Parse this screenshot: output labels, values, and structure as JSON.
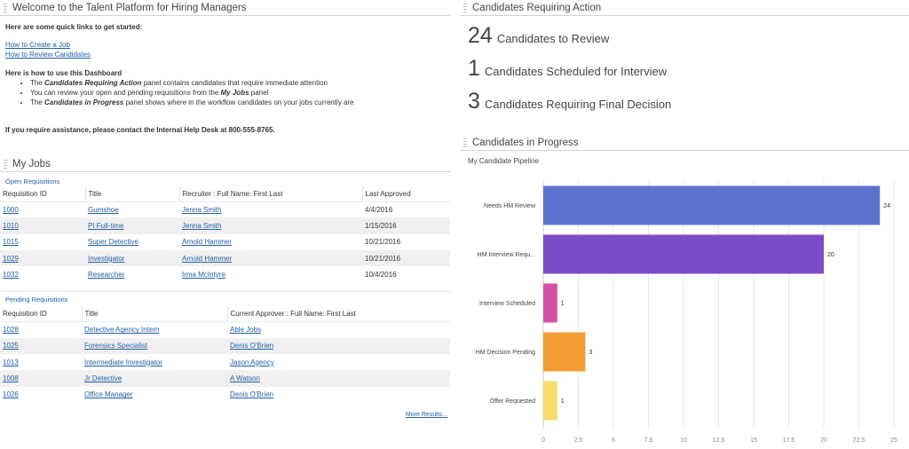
{
  "welcome": {
    "title": "Welcome to the Talent Platform for Hiring Managers",
    "intro": "Here are some quick links to get started:",
    "links": [
      "How to Create a Job",
      "How to Review Candidates"
    ],
    "howto_title": "Here is how to use this Dashboard",
    "bullets": [
      {
        "pre": "The ",
        "em": "Candidates Requiring Action",
        "post": " panel contains candidates that require immediate attention"
      },
      {
        "pre": "You can review your open and pending requisitions from the ",
        "em": "My Jobs",
        "post": " panel"
      },
      {
        "pre": "The ",
        "em": "Candidates in Progress",
        "post": " panel shows where in the workflow candidates on your jobs currently are"
      }
    ],
    "assistance": "If you require assistance, please contact the Internal Help Desk at 800-555-8765."
  },
  "myjobs": {
    "title": "My Jobs",
    "open": {
      "title": "Open Requisitions",
      "headers": [
        "Requisition ID",
        "Title",
        "Recruiter : Full Name: First Last",
        "Last Approved"
      ],
      "rows": [
        [
          "1000",
          "Gumshoe",
          "Jenna Smith",
          "4/4/2016"
        ],
        [
          "1010",
          "PI Full-time",
          "Jenna Smith",
          "1/15/2016"
        ],
        [
          "1015",
          "Super Detective",
          "Arnold Hammer",
          "10/21/2016"
        ],
        [
          "1029",
          "Investigator",
          "Arnold Hammer",
          "10/21/2016"
        ],
        [
          "1032",
          "Researcher",
          "Irma McIntyre",
          "10/4/2016"
        ]
      ]
    },
    "pending": {
      "title": "Pending Requisitions",
      "headers": [
        "Requisition ID",
        "Title",
        "Current Approver : Full Name: First Last"
      ],
      "rows": [
        [
          "1028",
          "Detective Agency Intern",
          "Able Jobs"
        ],
        [
          "1025",
          "Forensics Specialist",
          "Denis O'Brien"
        ],
        [
          "1013",
          "Intermediate Investigator",
          "Jason Agency"
        ],
        [
          "1008",
          "Jr Detective",
          "A Watson"
        ],
        [
          "1026",
          "Office Manager",
          "Denis O'Brien"
        ]
      ]
    },
    "more": "More Results..."
  },
  "cra": {
    "title": "Candidates Requiring Action",
    "stats": [
      {
        "num": "24",
        "label": "Candidates to Review"
      },
      {
        "num": "1",
        "label": "Candidates Scheduled for Interview"
      },
      {
        "num": "3",
        "label": "Candidates Requiring Final Decision"
      }
    ]
  },
  "cip": {
    "title": "Candidates in Progress",
    "subtitle": "My Candidate Pipeline"
  },
  "chart_data": {
    "type": "bar",
    "orientation": "horizontal",
    "title": "My Candidate Pipeline",
    "categories": [
      "Needs HM Review",
      "HM Interview Requ...",
      "Interview Scheduled",
      "HM Decision Pending",
      "Offer Requested"
    ],
    "values": [
      24,
      20,
      1,
      3,
      1
    ],
    "colors": [
      "#5b73cc",
      "#7d4bc9",
      "#d64fa6",
      "#f39c33",
      "#f7dd6b"
    ],
    "xlim": [
      0,
      25
    ],
    "xticks": [
      "0",
      "2.5",
      "5",
      "7.5",
      "10",
      "12.5",
      "15",
      "17.5",
      "20",
      "22.5",
      "25"
    ],
    "grid": true
  }
}
